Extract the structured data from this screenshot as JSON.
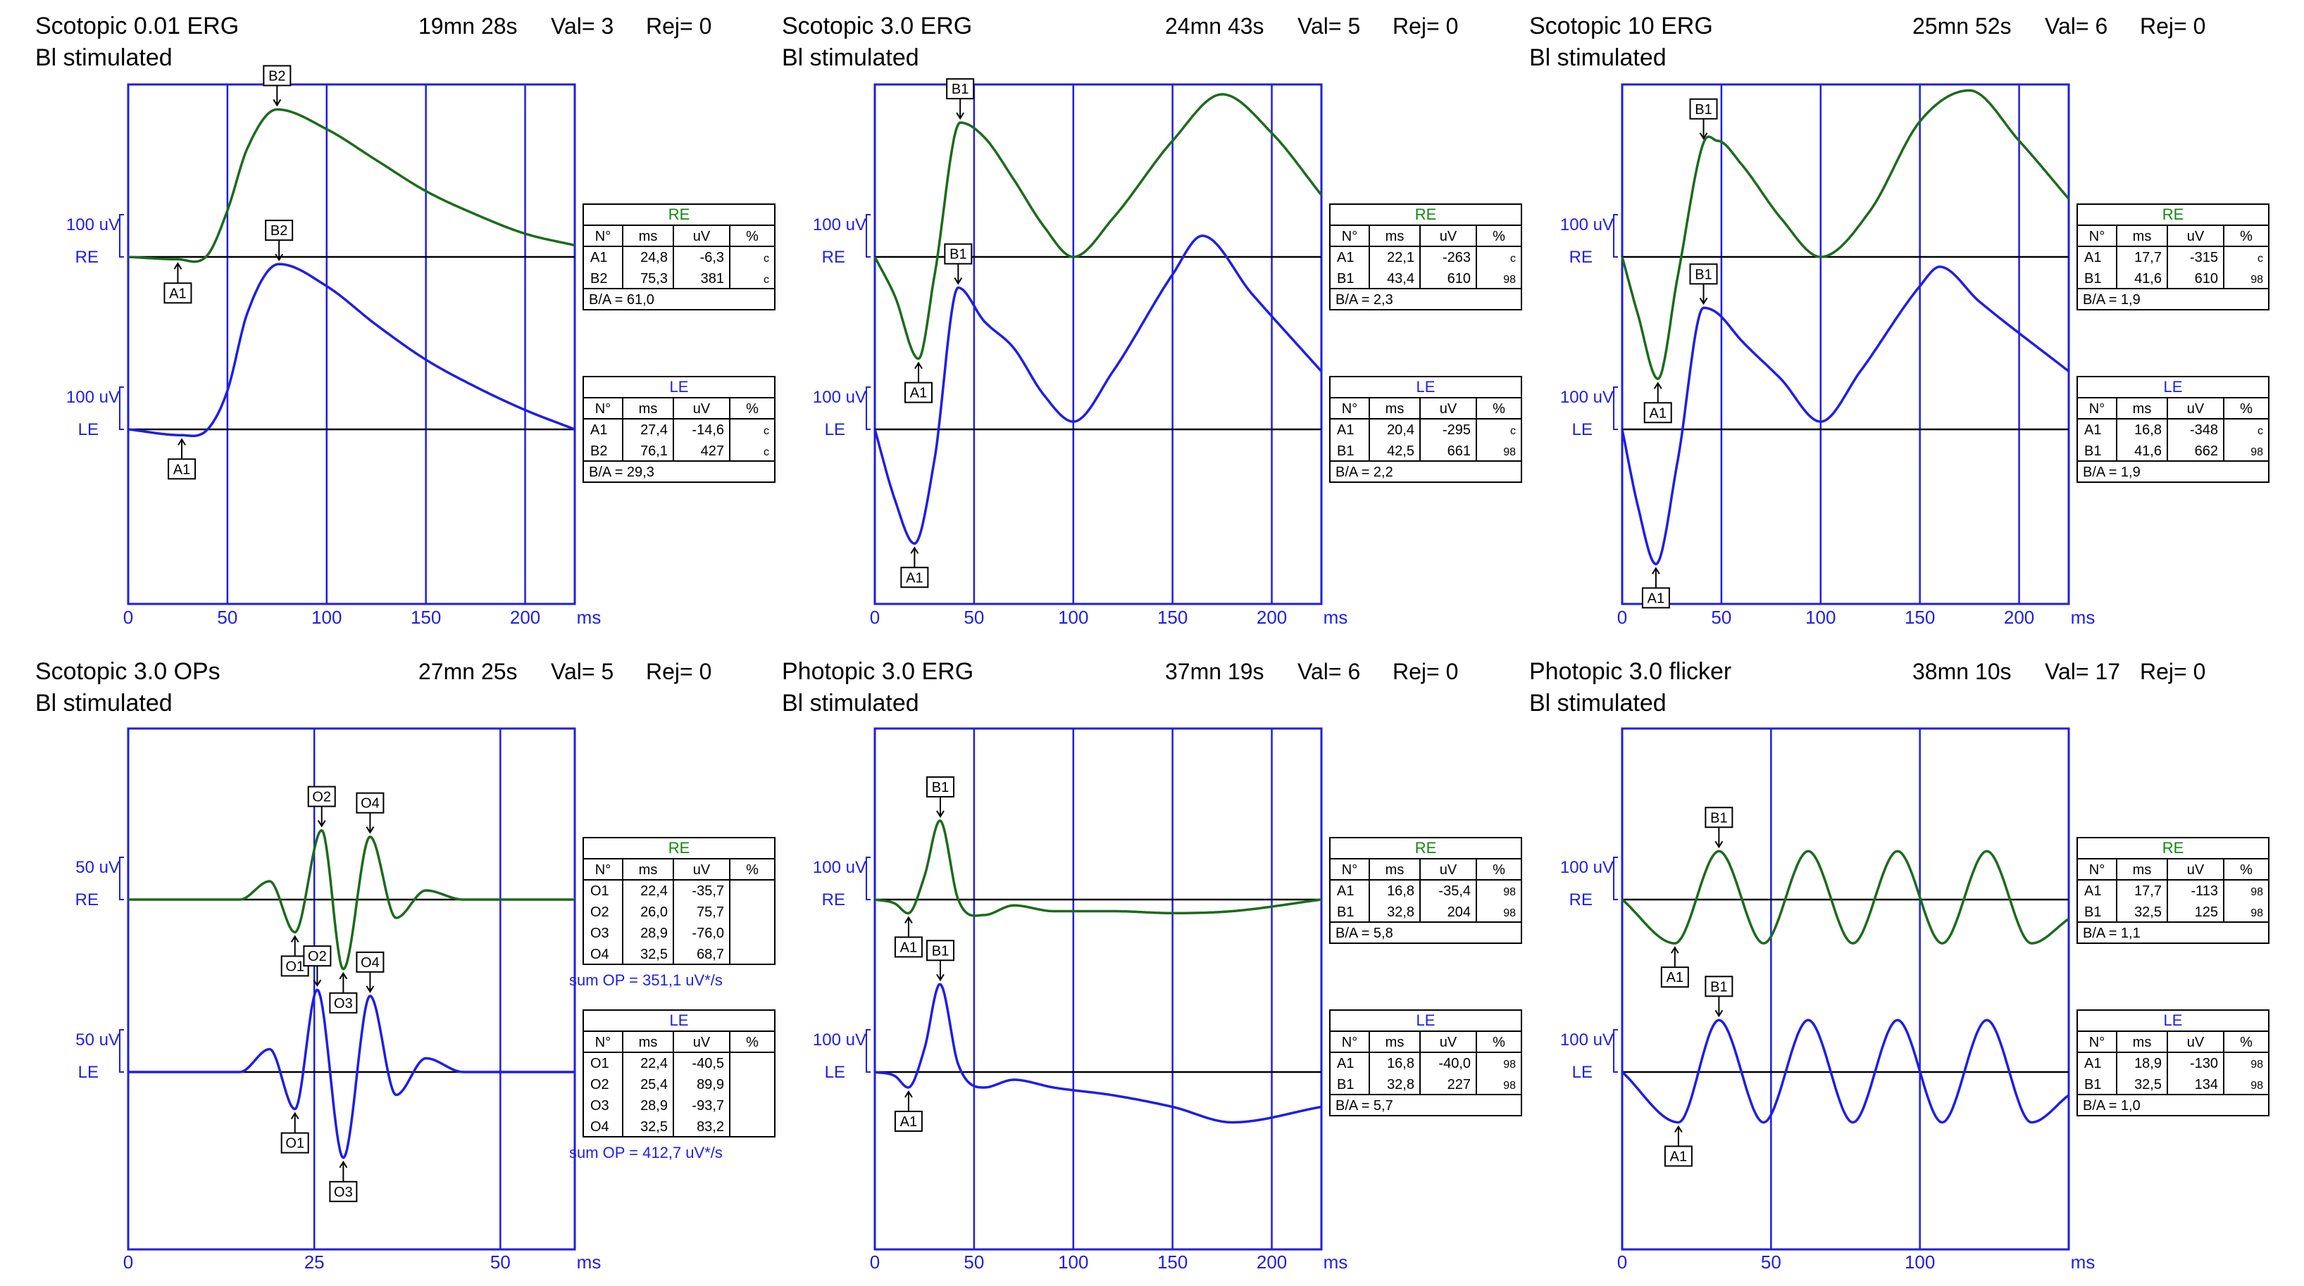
{
  "colors": {
    "re_trace": "#1c6b1c",
    "le_trace": "#1e1ee6",
    "frame": "#1e1ee6",
    "text": "#000000",
    "table_title": "#1e1ee6",
    "table_title_re": "#118811"
  },
  "common": {
    "x_unit": "ms",
    "re_label": "RE",
    "le_label": "LE"
  },
  "panels": [
    {
      "id": "scotopic-001",
      "title": "Scotopic 0.01 ERG",
      "subtitle": "Bl stimulated",
      "time": "19mn 28s",
      "val": "Val= 3",
      "rej": "Rej= 0",
      "xmax": 225,
      "xticks": [
        "0",
        "50",
        "100",
        "150",
        "200"
      ],
      "re_scale": "100 uV",
      "le_scale": "100 uV",
      "tables": [
        {
          "eye": "RE",
          "headers": [
            "N°",
            "ms",
            "uV",
            "%"
          ],
          "rows": [
            [
              "A1",
              "24,8",
              "-6,3",
              "c"
            ],
            [
              "B2",
              "75,3",
              "381",
              "c"
            ]
          ],
          "ratio": "B/A = 61,0"
        },
        {
          "eye": "LE",
          "headers": [
            "N°",
            "ms",
            "uV",
            "%"
          ],
          "rows": [
            [
              "A1",
              "27,4",
              "-14,6",
              "c"
            ],
            [
              "B2",
              "76,1",
              "427",
              "c"
            ]
          ],
          "ratio": "B/A = 29,3"
        }
      ],
      "markers": [
        {
          "label": "B2",
          "trace": "re",
          "t": 75,
          "side": "above"
        },
        {
          "label": "A1",
          "trace": "re",
          "t": 25,
          "side": "below"
        },
        {
          "label": "B2",
          "trace": "le",
          "t": 76,
          "side": "above"
        },
        {
          "label": "A1",
          "trace": "le",
          "t": 27,
          "side": "below"
        }
      ]
    },
    {
      "id": "scotopic-30",
      "title": "Scotopic 3.0 ERG",
      "subtitle": "Bl stimulated",
      "time": "24mn 43s",
      "val": "Val= 5",
      "rej": "Rej= 0",
      "xmax": 225,
      "xticks": [
        "0",
        "50",
        "100",
        "150",
        "200"
      ],
      "re_scale": "100 uV",
      "le_scale": "100 uV",
      "tables": [
        {
          "eye": "RE",
          "headers": [
            "N°",
            "ms",
            "uV",
            "%"
          ],
          "rows": [
            [
              "A1",
              "22,1",
              "-263",
              "c"
            ],
            [
              "B1",
              "43,4",
              "610",
              "98"
            ]
          ],
          "ratio": "B/A = 2,3"
        },
        {
          "eye": "LE",
          "headers": [
            "N°",
            "ms",
            "uV",
            "%"
          ],
          "rows": [
            [
              "A1",
              "20,4",
              "-295",
              "c"
            ],
            [
              "B1",
              "42,5",
              "661",
              "98"
            ]
          ],
          "ratio": "B/A = 2,2"
        }
      ],
      "markers": [
        {
          "label": "B1",
          "trace": "re",
          "t": 43,
          "side": "above"
        },
        {
          "label": "A1",
          "trace": "re",
          "t": 22,
          "side": "below"
        },
        {
          "label": "B1",
          "trace": "le",
          "t": 42,
          "side": "above"
        },
        {
          "label": "A1",
          "trace": "le",
          "t": 20,
          "side": "below"
        }
      ]
    },
    {
      "id": "scotopic-10",
      "title": "Scotopic 10 ERG",
      "subtitle": "Bl stimulated",
      "time": "25mn 52s",
      "val": "Val= 6",
      "rej": "Rej= 0",
      "xmax": 225,
      "xticks": [
        "0",
        "50",
        "100",
        "150",
        "200"
      ],
      "re_scale": "100 uV",
      "le_scale": "100 uV",
      "tables": [
        {
          "eye": "RE",
          "headers": [
            "N°",
            "ms",
            "uV",
            "%"
          ],
          "rows": [
            [
              "A1",
              "17,7",
              "-315",
              "c"
            ],
            [
              "B1",
              "41,6",
              "610",
              "98"
            ]
          ],
          "ratio": "B/A = 1,9"
        },
        {
          "eye": "LE",
          "headers": [
            "N°",
            "ms",
            "uV",
            "%"
          ],
          "rows": [
            [
              "A1",
              "16,8",
              "-348",
              "c"
            ],
            [
              "B1",
              "41,6",
              "662",
              "98"
            ]
          ],
          "ratio": "B/A = 1,9"
        }
      ],
      "markers": [
        {
          "label": "B1",
          "trace": "re",
          "t": 41,
          "side": "above"
        },
        {
          "label": "A1",
          "trace": "re",
          "t": 18,
          "side": "below"
        },
        {
          "label": "B1",
          "trace": "le",
          "t": 41,
          "side": "above"
        },
        {
          "label": "A1",
          "trace": "le",
          "t": 17,
          "side": "below"
        }
      ]
    },
    {
      "id": "scotopic-ops",
      "title": "Scotopic 3.0 OPs",
      "subtitle": "Bl stimulated",
      "time": "27mn 25s",
      "val": "Val= 5",
      "rej": "Rej= 0",
      "xmax": 60,
      "xticks": [
        "0",
        "25",
        "50"
      ],
      "re_scale": "50 uV",
      "le_scale": "50 uV",
      "tables": [
        {
          "eye": "RE",
          "headers": [
            "N°",
            "ms",
            "uV",
            "%"
          ],
          "rows": [
            [
              "O1",
              "22,4",
              "-35,7",
              ""
            ],
            [
              "O2",
              "26,0",
              "75,7",
              ""
            ],
            [
              "O3",
              "28,9",
              "-76,0",
              ""
            ],
            [
              "O4",
              "32,5",
              "68,7",
              ""
            ]
          ],
          "sum": "sum OP = 351,1 uV*/s"
        },
        {
          "eye": "LE",
          "headers": [
            "N°",
            "ms",
            "uV",
            "%"
          ],
          "rows": [
            [
              "O1",
              "22,4",
              "-40,5",
              ""
            ],
            [
              "O2",
              "25,4",
              "89,9",
              ""
            ],
            [
              "O3",
              "28,9",
              "-93,7",
              ""
            ],
            [
              "O4",
              "32,5",
              "83,2",
              ""
            ]
          ],
          "sum": "sum OP = 412,7 uV*/s"
        }
      ],
      "markers": [
        {
          "label": "O2",
          "trace": "re",
          "t": 26,
          "side": "above"
        },
        {
          "label": "O4",
          "trace": "re",
          "t": 32.5,
          "side": "above"
        },
        {
          "label": "O1",
          "trace": "re",
          "t": 22.4,
          "side": "below"
        },
        {
          "label": "O3",
          "trace": "re",
          "t": 28.9,
          "side": "below"
        },
        {
          "label": "O2",
          "trace": "le",
          "t": 25.4,
          "side": "above"
        },
        {
          "label": "O4",
          "trace": "le",
          "t": 32.5,
          "side": "above"
        },
        {
          "label": "O1",
          "trace": "le",
          "t": 22.4,
          "side": "below"
        },
        {
          "label": "O3",
          "trace": "le",
          "t": 28.9,
          "side": "below"
        }
      ]
    },
    {
      "id": "photopic-30",
      "title": "Photopic 3.0 ERG",
      "subtitle": "Bl stimulated",
      "time": "37mn 19s",
      "val": "Val= 6",
      "rej": "Rej= 0",
      "xmax": 225,
      "xticks": [
        "0",
        "50",
        "100",
        "150",
        "200"
      ],
      "re_scale": "100 uV",
      "le_scale": "100 uV",
      "tables": [
        {
          "eye": "RE",
          "headers": [
            "N°",
            "ms",
            "uV",
            "%"
          ],
          "rows": [
            [
              "A1",
              "16,8",
              "-35,4",
              "98"
            ],
            [
              "B1",
              "32,8",
              "204",
              "98"
            ]
          ],
          "ratio": "B/A = 5,8"
        },
        {
          "eye": "LE",
          "headers": [
            "N°",
            "ms",
            "uV",
            "%"
          ],
          "rows": [
            [
              "A1",
              "16,8",
              "-40,0",
              "98"
            ],
            [
              "B1",
              "32,8",
              "227",
              "98"
            ]
          ],
          "ratio": "B/A = 5,7"
        }
      ],
      "markers": [
        {
          "label": "B1",
          "trace": "re",
          "t": 33,
          "side": "above"
        },
        {
          "label": "A1",
          "trace": "re",
          "t": 17,
          "side": "below"
        },
        {
          "label": "B1",
          "trace": "le",
          "t": 33,
          "side": "above"
        },
        {
          "label": "A1",
          "trace": "le",
          "t": 17,
          "side": "below"
        }
      ]
    },
    {
      "id": "photopic-flicker",
      "title": "Photopic 3.0 flicker",
      "subtitle": "Bl stimulated",
      "time": "38mn 10s",
      "val": "Val= 17",
      "rej": "Rej= 0",
      "xmax": 150,
      "xticks": [
        "0",
        "50",
        "100"
      ],
      "re_scale": "100 uV",
      "le_scale": "100 uV",
      "tables": [
        {
          "eye": "RE",
          "headers": [
            "N°",
            "ms",
            "uV",
            "%"
          ],
          "rows": [
            [
              "A1",
              "17,7",
              "-113",
              "98"
            ],
            [
              "B1",
              "32,5",
              "125",
              "98"
            ]
          ],
          "ratio": "B/A = 1,1"
        },
        {
          "eye": "LE",
          "headers": [
            "N°",
            "ms",
            "uV",
            "%"
          ],
          "rows": [
            [
              "A1",
              "18,9",
              "-130",
              "98"
            ],
            [
              "B1",
              "32,5",
              "134",
              "98"
            ]
          ],
          "ratio": "B/A = 1,0"
        }
      ],
      "markers": [
        {
          "label": "B1",
          "trace": "re",
          "t": 32.5,
          "side": "above"
        },
        {
          "label": "A1",
          "trace": "re",
          "t": 17.7,
          "side": "below"
        },
        {
          "label": "B1",
          "trace": "le",
          "t": 32.5,
          "side": "above"
        },
        {
          "label": "A1",
          "trace": "le",
          "t": 18.9,
          "side": "below"
        }
      ]
    }
  ],
  "chart_data": [
    {
      "type": "line",
      "title": "Scotopic 0.01 ERG",
      "xlabel": "ms",
      "xlim": [
        0,
        225
      ],
      "series": [
        {
          "name": "RE",
          "x": [
            0,
            25,
            40,
            50,
            60,
            75,
            100,
            125,
            150,
            175,
            200,
            225
          ],
          "values": [
            0,
            -6,
            5,
            120,
            280,
            381,
            330,
            250,
            170,
            110,
            60,
            30
          ]
        },
        {
          "name": "LE",
          "x": [
            0,
            27,
            40,
            50,
            60,
            76,
            100,
            125,
            150,
            175,
            200,
            225
          ],
          "values": [
            0,
            -15,
            0,
            100,
            300,
            427,
            370,
            270,
            180,
            110,
            50,
            0
          ]
        }
      ]
    },
    {
      "type": "line",
      "title": "Scotopic 3.0 ERG",
      "xlabel": "ms",
      "xlim": [
        0,
        225
      ],
      "series": [
        {
          "name": "RE",
          "x": [
            0,
            10,
            22,
            30,
            43,
            55,
            70,
            85,
            100,
            120,
            150,
            175,
            200,
            225
          ],
          "values": [
            0,
            -100,
            -263,
            -50,
            347,
            310,
            200,
            80,
            0,
            100,
            300,
            420,
            320,
            160
          ]
        },
        {
          "name": "LE",
          "x": [
            0,
            10,
            20,
            30,
            42,
            55,
            70,
            85,
            100,
            120,
            150,
            165,
            190,
            225
          ],
          "values": [
            0,
            -180,
            -295,
            -80,
            366,
            280,
            210,
            90,
            20,
            150,
            400,
            500,
            350,
            150
          ]
        }
      ]
    },
    {
      "type": "line",
      "title": "Scotopic 10 ERG",
      "xlabel": "ms",
      "xlim": [
        0,
        225
      ],
      "series": [
        {
          "name": "RE",
          "x": [
            0,
            8,
            18,
            28,
            41,
            48,
            60,
            80,
            100,
            125,
            150,
            175,
            200,
            225
          ],
          "values": [
            0,
            -150,
            -315,
            -50,
            295,
            300,
            240,
            100,
            0,
            120,
            350,
            430,
            300,
            150
          ]
        },
        {
          "name": "LE",
          "x": [
            0,
            8,
            17,
            28,
            41,
            48,
            60,
            80,
            100,
            120,
            150,
            160,
            180,
            225
          ],
          "values": [
            0,
            -200,
            -348,
            -80,
            314,
            300,
            230,
            130,
            20,
            150,
            370,
            420,
            330,
            150
          ]
        }
      ]
    },
    {
      "type": "line",
      "title": "Scotopic 3.0 OPs",
      "xlabel": "ms",
      "xlim": [
        0,
        60
      ],
      "series": [
        {
          "name": "RE",
          "x": [
            0,
            15,
            19,
            22.4,
            26,
            28.9,
            32.5,
            36,
            40,
            45,
            60
          ],
          "values": [
            0,
            0,
            20,
            -35.7,
            75.7,
            -76,
            68.7,
            -20,
            10,
            0,
            0
          ]
        },
        {
          "name": "LE",
          "x": [
            0,
            15,
            19,
            22.4,
            25.4,
            28.9,
            32.5,
            36,
            40,
            45,
            60
          ],
          "values": [
            0,
            0,
            25,
            -40.5,
            89.9,
            -93.7,
            83.2,
            -25,
            15,
            0,
            0
          ]
        }
      ]
    },
    {
      "type": "line",
      "title": "Photopic 3.0 ERG",
      "xlabel": "ms",
      "xlim": [
        0,
        225
      ],
      "series": [
        {
          "name": "RE",
          "x": [
            0,
            10,
            16.8,
            25,
            32.8,
            42,
            55,
            70,
            90,
            120,
            150,
            180,
            225
          ],
          "values": [
            0,
            -10,
            -35.4,
            60,
            204,
            0,
            -40,
            -15,
            -30,
            -30,
            -35,
            -30,
            0
          ]
        },
        {
          "name": "LE",
          "x": [
            0,
            10,
            16.8,
            25,
            32.8,
            42,
            55,
            70,
            90,
            120,
            150,
            180,
            225
          ],
          "values": [
            0,
            -10,
            -40,
            60,
            227,
            20,
            -40,
            -20,
            -40,
            -60,
            -90,
            -130,
            -90
          ]
        }
      ]
    },
    {
      "type": "line",
      "title": "Photopic 3.0 flicker",
      "xlabel": "ms",
      "xlim": [
        0,
        150
      ],
      "series": [
        {
          "name": "RE",
          "x": [
            0,
            17.7,
            32.5,
            47.5,
            62.5,
            77.5,
            92.5,
            107.5,
            122.5,
            137.5,
            150
          ],
          "values": [
            0,
            -113,
            125,
            -113,
            125,
            -113,
            125,
            -113,
            125,
            -113,
            -50
          ]
        },
        {
          "name": "LE",
          "x": [
            0,
            18.9,
            32.5,
            47.5,
            62.5,
            77.5,
            92.5,
            107.5,
            122.5,
            137.5,
            150
          ],
          "values": [
            0,
            -130,
            134,
            -130,
            134,
            -130,
            134,
            -130,
            134,
            -130,
            -60
          ]
        }
      ]
    }
  ]
}
